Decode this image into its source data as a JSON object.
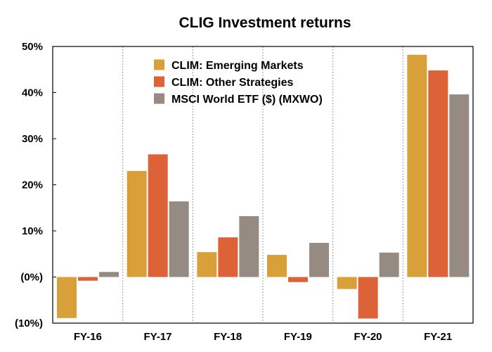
{
  "chart_data": {
    "type": "bar",
    "title": "CLIG Investment returns",
    "xlabel": "",
    "ylabel": "",
    "categories": [
      "FY-16",
      "FY-17",
      "FY-18",
      "FY-19",
      "FY-20",
      "FY-21"
    ],
    "series": [
      {
        "name": "CLIM: Emerging Markets",
        "color": "#D9A03A",
        "values": [
          -8.9,
          23.0,
          5.4,
          4.8,
          -2.6,
          48.2
        ]
      },
      {
        "name": "CLIM: Other Strategies",
        "color": "#DD6238",
        "values": [
          -0.8,
          26.6,
          8.6,
          -1.1,
          -9.0,
          44.8
        ]
      },
      {
        "name": "MSCI World ETF ($) (MXWO)",
        "color": "#958B82",
        "values": [
          1.1,
          16.4,
          13.2,
          7.4,
          5.3,
          39.6
        ]
      }
    ],
    "ylim": [
      -10,
      50
    ],
    "yticks": [
      -10,
      0,
      10,
      20,
      30,
      40,
      50
    ],
    "ytick_labels": [
      "(10%)",
      "(0%)",
      "10%",
      "20%",
      "30%",
      "40%",
      "50%"
    ],
    "grid": {
      "vertical_dotted": true,
      "horizontal": false
    },
    "legend_position": "top-left"
  }
}
